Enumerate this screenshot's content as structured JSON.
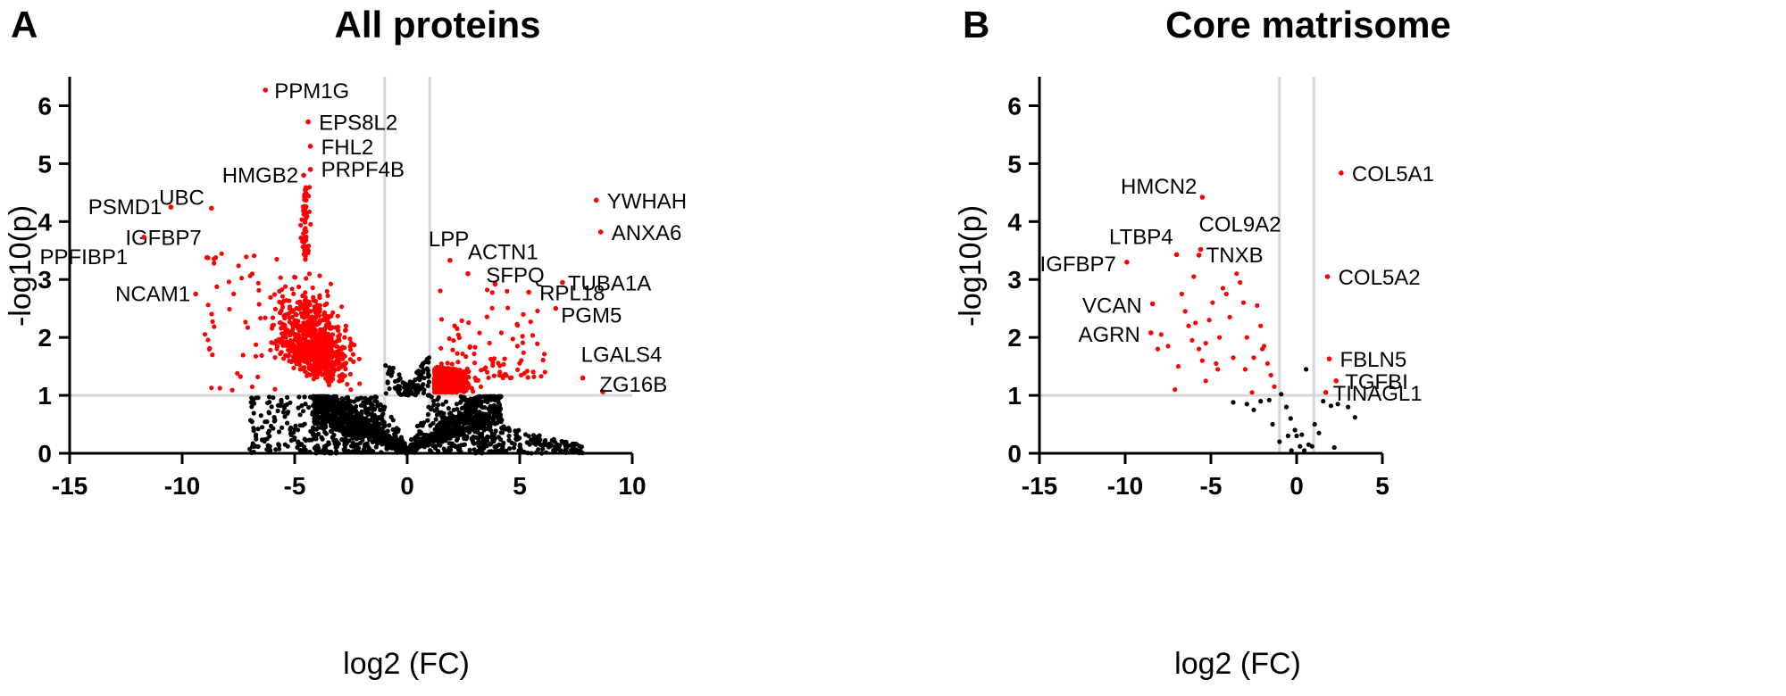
{
  "chart_data": [
    {
      "type": "scatter",
      "panel_letter": "A",
      "title": "All proteins",
      "xlabel": "log2 (FC)",
      "ylabel": "-log10(p)",
      "xlim": [
        -15,
        10
      ],
      "ylim": [
        0,
        6.5
      ],
      "xticks": [
        -15,
        -10,
        -5,
        0,
        5,
        10
      ],
      "yticks": [
        0,
        1,
        2,
        3,
        4,
        5,
        6
      ],
      "thresholds": {
        "x": [
          -1,
          1
        ],
        "y": [
          1
        ]
      },
      "colors": {
        "significant": "#ff0000",
        "not_significant": "#000000",
        "threshold": "#d6d6d6"
      },
      "grid": false,
      "labeled_points": [
        {
          "label": "PPM1G",
          "x": -6.3,
          "y": 6.27
        },
        {
          "label": "EPS8L2",
          "x": -4.4,
          "y": 5.72
        },
        {
          "label": "FHL2",
          "x": -4.3,
          "y": 5.3
        },
        {
          "label": "PRPF4B",
          "x": -4.3,
          "y": 4.9
        },
        {
          "label": "HMGB2",
          "x": -4.6,
          "y": 4.8
        },
        {
          "label": "PSMD1",
          "x": -10.5,
          "y": 4.25
        },
        {
          "label": "UBC",
          "x": -8.7,
          "y": 4.23
        },
        {
          "label": "IGFBP7",
          "x": -8.9,
          "y": 3.38
        },
        {
          "label": "PPFIBP1",
          "x": -11.7,
          "y": 3.73
        },
        {
          "label": "NCAM1",
          "x": -9.4,
          "y": 2.75
        },
        {
          "label": "YWHAH",
          "x": 8.4,
          "y": 4.37
        },
        {
          "label": "ANXA6",
          "x": 8.6,
          "y": 3.82
        },
        {
          "label": "LPP",
          "x": 1.9,
          "y": 3.33
        },
        {
          "label": "ACTN1",
          "x": 2.7,
          "y": 3.1
        },
        {
          "label": "SFPQ",
          "x": 3.9,
          "y": 2.92
        },
        {
          "label": "TUBA1A",
          "x": 6.9,
          "y": 2.95
        },
        {
          "label": "RPL18",
          "x": 5.4,
          "y": 2.78
        },
        {
          "label": "PGM5",
          "x": 6.6,
          "y": 2.5
        },
        {
          "label": "LGALS4",
          "x": 7.8,
          "y": 1.3
        },
        {
          "label": "ZG16B",
          "x": 8.7,
          "y": 1.06
        }
      ]
    },
    {
      "type": "scatter",
      "panel_letter": "B",
      "title": "Core matrisome",
      "xlabel": "log2 (FC)",
      "ylabel": "-log10(p)",
      "xlim": [
        -15,
        5
      ],
      "ylim": [
        0,
        6.5
      ],
      "xticks": [
        -15,
        -10,
        -5,
        0,
        5
      ],
      "yticks": [
        0,
        1,
        2,
        3,
        4,
        5,
        6
      ],
      "thresholds": {
        "x": [
          -1,
          1
        ],
        "y": [
          1
        ]
      },
      "colors": {
        "significant": "#ff0000",
        "not_significant": "#000000",
        "threshold": "#d6d6d6"
      },
      "grid": false,
      "labeled_points": [
        {
          "label": "HMCN2",
          "x": -5.5,
          "y": 4.42
        },
        {
          "label": "LTBP4",
          "x": -7.0,
          "y": 3.43
        },
        {
          "label": "COL9A2",
          "x": -5.6,
          "y": 3.52
        },
        {
          "label": "TNXB",
          "x": -5.7,
          "y": 3.42
        },
        {
          "label": "IGFBP7",
          "x": -9.9,
          "y": 3.3
        },
        {
          "label": "VCAN",
          "x": -8.4,
          "y": 2.58
        },
        {
          "label": "AGRN",
          "x": -8.5,
          "y": 2.08
        },
        {
          "label": "COL5A1",
          "x": 2.6,
          "y": 4.84
        },
        {
          "label": "COL5A2",
          "x": 1.8,
          "y": 3.05
        },
        {
          "label": "FBLN5",
          "x": 1.9,
          "y": 1.63
        },
        {
          "label": "TGFBI",
          "x": 2.3,
          "y": 1.25
        },
        {
          "label": "TINAGL1",
          "x": 1.7,
          "y": 1.05
        }
      ],
      "other_significant_points": [
        [
          -6.7,
          2.75
        ],
        [
          -6.5,
          2.45
        ],
        [
          -6.3,
          2.2
        ],
        [
          -6.1,
          1.95
        ],
        [
          -5.9,
          2.25
        ],
        [
          -5.7,
          1.8
        ],
        [
          -5.5,
          1.6
        ],
        [
          -5.3,
          1.9
        ],
        [
          -5.1,
          2.3
        ],
        [
          -4.9,
          2.6
        ],
        [
          -4.7,
          1.55
        ],
        [
          -4.5,
          2.0
        ],
        [
          -4.3,
          2.85
        ],
        [
          -4.1,
          2.75
        ],
        [
          -3.9,
          2.35
        ],
        [
          -3.7,
          1.65
        ],
        [
          -3.5,
          3.1
        ],
        [
          -3.3,
          2.95
        ],
        [
          -3.1,
          2.6
        ],
        [
          -2.9,
          2.0
        ],
        [
          -2.6,
          1.05
        ],
        [
          -2.3,
          2.55
        ],
        [
          -2.1,
          2.2
        ],
        [
          -1.9,
          1.85
        ],
        [
          -1.7,
          1.55
        ],
        [
          -1.5,
          1.35
        ],
        [
          -1.3,
          1.15
        ],
        [
          -6.9,
          1.5
        ],
        [
          -7.1,
          1.1
        ],
        [
          -7.5,
          1.85
        ],
        [
          -7.9,
          2.05
        ],
        [
          -8.1,
          1.8
        ],
        [
          -6.0,
          3.05
        ],
        [
          -4.6,
          1.45
        ],
        [
          -3.0,
          1.45
        ],
        [
          -2.5,
          1.65
        ],
        [
          -5.3,
          1.25
        ],
        [
          -2.0,
          1.8
        ]
      ],
      "non_significant_points": [
        [
          -3.7,
          0.88
        ],
        [
          -2.9,
          0.85
        ],
        [
          -2.1,
          0.9
        ],
        [
          -1.6,
          0.92
        ],
        [
          -0.9,
          1.02
        ],
        [
          -0.6,
          0.8
        ],
        [
          -0.35,
          0.6
        ],
        [
          -0.1,
          0.4
        ],
        [
          0.3,
          0.32
        ],
        [
          0.55,
          1.45
        ],
        [
          0.7,
          0.15
        ],
        [
          1.05,
          0.5
        ],
        [
          1.55,
          0.9
        ],
        [
          2.0,
          0.82
        ],
        [
          2.4,
          0.85
        ],
        [
          3.0,
          0.8
        ],
        [
          3.4,
          0.62
        ],
        [
          -1.0,
          0.2
        ],
        [
          -0.5,
          0.3
        ],
        [
          0.0,
          0.3
        ],
        [
          0.2,
          0.12
        ],
        [
          0.45,
          0.05
        ],
        [
          1.3,
          0.35
        ],
        [
          2.2,
          0.1
        ],
        [
          -1.4,
          0.5
        ],
        [
          -2.5,
          0.75
        ],
        [
          0.9,
          0.12
        ],
        [
          -0.3,
          0.05
        ]
      ]
    }
  ]
}
